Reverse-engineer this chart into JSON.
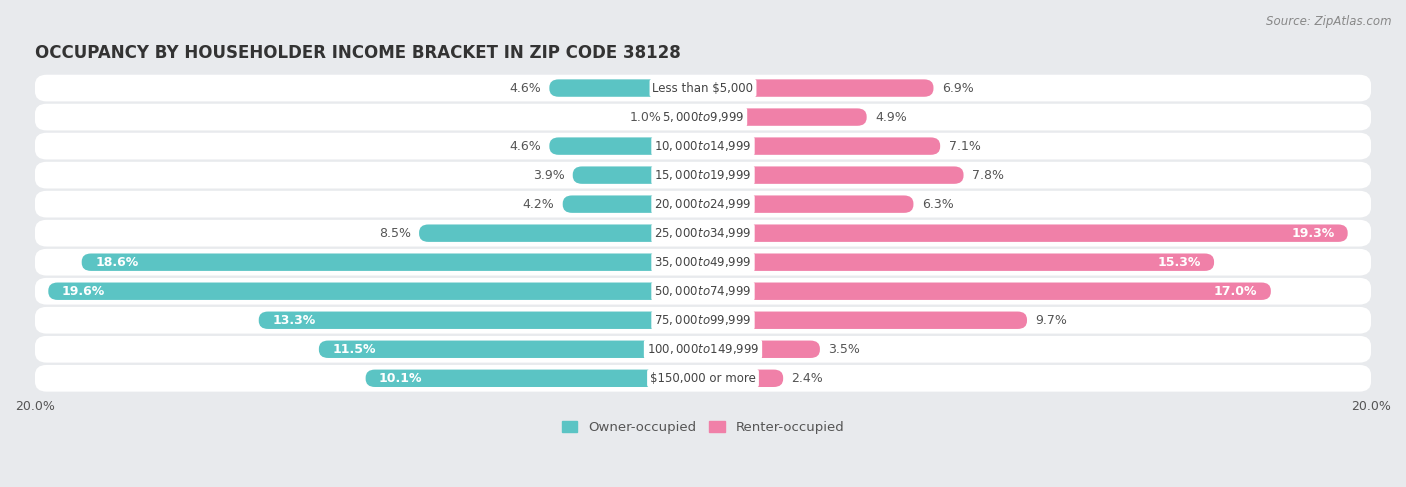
{
  "title": "OCCUPANCY BY HOUSEHOLDER INCOME BRACKET IN ZIP CODE 38128",
  "source": "Source: ZipAtlas.com",
  "categories": [
    "Less than $5,000",
    "$5,000 to $9,999",
    "$10,000 to $14,999",
    "$15,000 to $19,999",
    "$20,000 to $24,999",
    "$25,000 to $34,999",
    "$35,000 to $49,999",
    "$50,000 to $74,999",
    "$75,000 to $99,999",
    "$100,000 to $149,999",
    "$150,000 or more"
  ],
  "owner_values": [
    4.6,
    1.0,
    4.6,
    3.9,
    4.2,
    8.5,
    18.6,
    19.6,
    13.3,
    11.5,
    10.1
  ],
  "renter_values": [
    6.9,
    4.9,
    7.1,
    7.8,
    6.3,
    19.3,
    15.3,
    17.0,
    9.7,
    3.5,
    2.4
  ],
  "owner_color": "#5bc4c4",
  "owner_color_dark": "#3aacac",
  "renter_color": "#f080a8",
  "renter_color_light": "#f8b0c8",
  "max_val": 20.0,
  "bg_color": "#e8eaed",
  "row_bg_color": "#f0f2f5",
  "bar_bg_color": "#ffffff",
  "title_fontsize": 12,
  "label_fontsize": 9,
  "source_fontsize": 8.5,
  "legend_fontsize": 9.5,
  "category_fontsize": 8.5,
  "owner_inside_threshold": 10.0,
  "renter_inside_threshold": 12.0
}
